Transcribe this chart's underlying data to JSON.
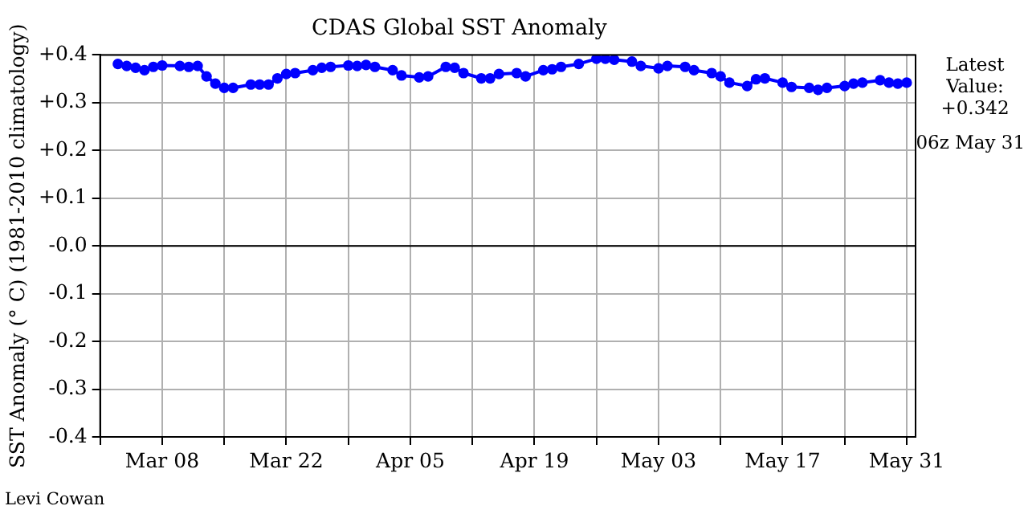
{
  "chart_data": {
    "type": "line",
    "title": "CDAS Global SST Anomaly",
    "ylabel": "SST Anomaly (° C) (1981-2010 climatology)",
    "x": [
      "--03-03",
      "--03-04",
      "--03-05",
      "--03-06",
      "--03-07",
      "--03-08",
      "--03-10",
      "--03-11",
      "--03-12",
      "--03-13",
      "--03-14",
      "--03-15",
      "--03-16",
      "--03-18",
      "--03-19",
      "--03-20",
      "--03-21",
      "--03-22",
      "--03-23",
      "--03-25",
      "--03-26",
      "--03-27",
      "--03-29",
      "--03-30",
      "--03-31",
      "--04-01",
      "--04-03",
      "--04-04",
      "--04-06",
      "--04-07",
      "--04-09",
      "--04-10",
      "--04-11",
      "--04-13",
      "--04-14",
      "--04-15",
      "--04-17",
      "--04-18",
      "--04-20",
      "--04-21",
      "--04-22",
      "--04-24",
      "--04-26",
      "--04-27",
      "--04-28",
      "--04-30",
      "--05-01",
      "--05-03",
      "--05-04",
      "--05-06",
      "--05-07",
      "--05-09",
      "--05-10",
      "--05-11",
      "--05-13",
      "--05-14",
      "--05-15",
      "--05-17",
      "--05-18",
      "--05-20",
      "--05-21",
      "--05-22",
      "--05-24",
      "--05-25",
      "--05-26",
      "--05-28",
      "--05-29",
      "--05-30",
      "--05-31"
    ],
    "series": [
      {
        "color": "#0000ff",
        "values": [
          0.381,
          0.377,
          0.373,
          0.368,
          0.375,
          0.378,
          0.377,
          0.375,
          0.377,
          0.355,
          0.34,
          0.331,
          0.331,
          0.338,
          0.338,
          0.338,
          0.351,
          0.36,
          0.362,
          0.368,
          0.373,
          0.375,
          0.378,
          0.377,
          0.379,
          0.375,
          0.368,
          0.357,
          0.353,
          0.355,
          0.375,
          0.373,
          0.362,
          0.351,
          0.351,
          0.36,
          0.362,
          0.355,
          0.368,
          0.37,
          0.375,
          0.381,
          0.392,
          0.392,
          0.39,
          0.386,
          0.377,
          0.372,
          0.377,
          0.375,
          0.368,
          0.362,
          0.355,
          0.342,
          0.335,
          0.349,
          0.351,
          0.342,
          0.333,
          0.331,
          0.327,
          0.331,
          0.335,
          0.34,
          0.342,
          0.347,
          0.342,
          0.34,
          0.342
        ]
      }
    ],
    "xlim": [
      "--03-01",
      "--06-01"
    ],
    "xticks": [
      {
        "value": "--03-01",
        "label": null
      },
      {
        "value": "--03-08",
        "label": "Mar 08"
      },
      {
        "value": "--03-15",
        "label": null
      },
      {
        "value": "--03-22",
        "label": "Mar 22"
      },
      {
        "value": "--03-29",
        "label": null
      },
      {
        "value": "--04-05",
        "label": "Apr 05"
      },
      {
        "value": "--04-12",
        "label": null
      },
      {
        "value": "--04-19",
        "label": "Apr 19"
      },
      {
        "value": "--04-26",
        "label": null
      },
      {
        "value": "--05-03",
        "label": "May 03"
      },
      {
        "value": "--05-10",
        "label": null
      },
      {
        "value": "--05-17",
        "label": "May 17"
      },
      {
        "value": "--05-24",
        "label": null
      },
      {
        "value": "--05-31",
        "label": "May 31"
      }
    ],
    "ylim": [
      -0.4,
      0.4
    ],
    "yticks": [
      {
        "value": -0.4,
        "label": "-0.4"
      },
      {
        "value": -0.3,
        "label": "-0.3"
      },
      {
        "value": -0.2,
        "label": "-0.2"
      },
      {
        "value": -0.1,
        "label": "-0.1"
      },
      {
        "value": 0,
        "label": "-0.0"
      },
      {
        "value": 0.1,
        "label": "+0.1"
      },
      {
        "value": 0.2,
        "label": "+0.2"
      },
      {
        "value": 0.3,
        "label": "+0.3"
      },
      {
        "value": 0.4,
        "label": "+0.4"
      }
    ],
    "ref_lines": [
      {
        "axis": "y",
        "value": 0,
        "color": "#000000"
      }
    ],
    "grid": true,
    "legend": false,
    "marker": "circle",
    "line_style": "solid",
    "annotations": [
      "Latest Value: +0.342",
      "06z May 31",
      "Levi Cowan"
    ]
  }
}
